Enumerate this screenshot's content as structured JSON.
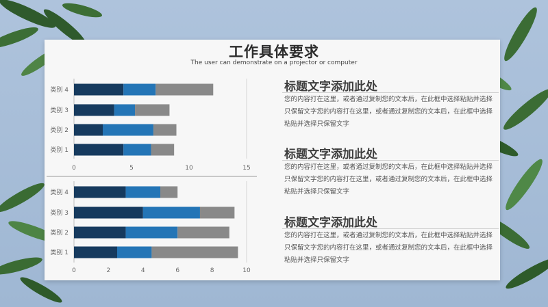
{
  "slide": {
    "title": "工作具体要求",
    "subtitle": "The user can demonstrate on a projector or computer"
  },
  "sections": [
    {
      "heading": "标题文字添加此处",
      "body": "您的内容打在这里，或者通过复制您的文本后，在此框中选择粘贴并选择只保留文字您的内容打在这里，或者通过复制您的文本后，在此框中选择粘贴并选择只保留文字"
    },
    {
      "heading": "标题文字添加此处",
      "body": "您的内容打在这里，或者通过复制您的文本后，在此框中选择粘贴并选择只保留文字您的内容打在这里，或者通过复制您的文本后，在此框中选择粘贴并选择只保留文字"
    },
    {
      "heading": "标题文字添加此处",
      "body": "您的内容打在这里，或者通过复制您的文本后，在此框中选择粘贴并选择只保留文字您的内容打在这里，或者通过复制您的文本后，在此框中选择粘贴并选择只保留文字"
    }
  ],
  "colors": {
    "dark": "#163a5e",
    "mid": "#2475b6",
    "gray": "#898989"
  },
  "chart_data": [
    {
      "type": "bar",
      "orientation": "horizontal",
      "stacked": true,
      "categories": [
        "类别 4",
        "类别 3",
        "类别 2",
        "类别 1"
      ],
      "series": [
        {
          "values": [
            4.3,
            3.5,
            2.5,
            4.3
          ]
        },
        {
          "values": [
            2.8,
            1.8,
            4.4,
            2.4
          ]
        },
        {
          "values": [
            5.0,
            3.0,
            2.0,
            2.0
          ]
        }
      ],
      "xlim": [
        0,
        15
      ],
      "xticks": [
        "0",
        "5",
        "10",
        "15"
      ]
    },
    {
      "type": "bar",
      "orientation": "horizontal",
      "stacked": true,
      "categories": [
        "类别 4",
        "类别 3",
        "类别 2",
        "类别 1"
      ],
      "series": [
        {
          "values": [
            3.0,
            4.0,
            3.0,
            2.5
          ]
        },
        {
          "values": [
            2.0,
            3.3,
            3.0,
            2.0
          ]
        },
        {
          "values": [
            1.0,
            2.0,
            3.0,
            5.0
          ]
        }
      ],
      "xlim": [
        0,
        10
      ],
      "xticks": [
        "0",
        "2",
        "4",
        "6",
        "8",
        "10"
      ]
    }
  ]
}
